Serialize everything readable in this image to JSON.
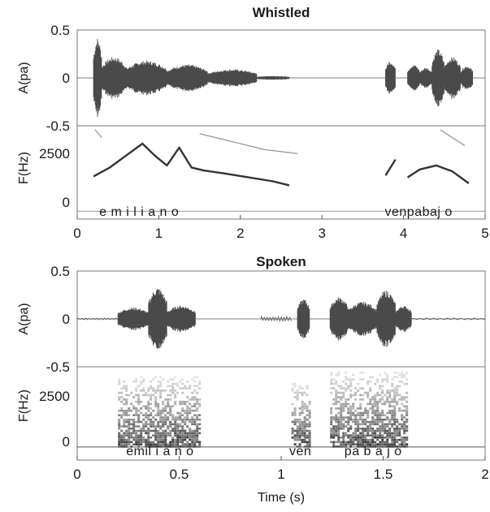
{
  "chart_data": [
    {
      "type": "line",
      "title": "Whistled",
      "x_ticks": [
        "0",
        "1",
        "2",
        "3",
        "4",
        "5"
      ],
      "xlim": [
        0,
        5
      ],
      "waveform": {
        "ylabel": "A(pa)",
        "ylim": [
          -0.5,
          0.5
        ],
        "y_ticks": [
          "0.5",
          "0",
          "-0.5"
        ],
        "bursts": [
          {
            "t0": 0.2,
            "t1": 0.3,
            "amp": 0.42
          },
          {
            "t0": 0.3,
            "t1": 0.6,
            "amp": 0.22
          },
          {
            "t0": 0.6,
            "t1": 1.1,
            "amp": 0.18
          },
          {
            "t0": 1.1,
            "t1": 1.6,
            "amp": 0.14
          },
          {
            "t0": 1.6,
            "t1": 2.2,
            "amp": 0.09
          },
          {
            "t0": 2.2,
            "t1": 2.6,
            "amp": 0.02
          },
          {
            "t0": 3.78,
            "t1": 3.9,
            "amp": 0.18
          },
          {
            "t0": 4.05,
            "t1": 4.2,
            "amp": 0.14
          },
          {
            "t0": 4.2,
            "t1": 4.35,
            "amp": 0.11
          },
          {
            "t0": 4.35,
            "t1": 4.5,
            "amp": 0.3
          },
          {
            "t0": 4.5,
            "t1": 4.7,
            "amp": 0.22
          },
          {
            "t0": 4.7,
            "t1": 4.85,
            "amp": 0.13
          }
        ]
      },
      "pitch": {
        "ylabel": "F(Hz)",
        "ylim": [
          -400,
          4300
        ],
        "y_ticks": [
          "2500",
          "0"
        ],
        "y_tick_values": [
          2500,
          0
        ],
        "contours": [
          {
            "t": [
              0.2,
              0.4,
              0.6,
              0.8,
              0.95,
              1.1,
              1.25,
              1.4,
              1.55,
              1.8,
              2.1,
              2.4,
              2.6
            ],
            "f": [
              1750,
              2200,
              2800,
              3400,
              2800,
              2300,
              3200,
              2200,
              2050,
              1900,
              1700,
              1500,
              1300
            ]
          },
          {
            "t": [
              1.5,
              1.9,
              2.3,
              2.7
            ],
            "f": [
              3900,
              3500,
              3100,
              2900
            ]
          },
          {
            "t": [
              0.22,
              0.3
            ],
            "f": [
              4100,
              3700
            ]
          },
          {
            "t": [
              3.78,
              3.9
            ],
            "f": [
              1800,
              2600
            ]
          },
          {
            "t": [
              4.05,
              4.2,
              4.4,
              4.6,
              4.8
            ],
            "f": [
              1700,
              2100,
              2300,
              2000,
              1400
            ]
          },
          {
            "t": [
              4.45,
              4.6,
              4.75
            ],
            "f": [
              4100,
              3700,
              3300
            ]
          }
        ]
      },
      "segments": [
        {
          "text": "e m i l i  a n  o",
          "t": 0.27
        },
        {
          "text": "venpabaj o",
          "t": 3.77
        }
      ]
    },
    {
      "type": "line",
      "title": "Spoken",
      "x_ticks": [
        "0",
        "0.5",
        "1",
        "1.5",
        "2"
      ],
      "xlim": [
        0,
        2
      ],
      "xlabel": "Time (s)",
      "waveform": {
        "ylabel": "A(pa)",
        "ylim": [
          -0.5,
          0.5
        ],
        "y_ticks": [
          "0.5",
          "0",
          "-0.5"
        ],
        "bursts": [
          {
            "t0": 0.2,
            "t1": 0.35,
            "amp": 0.12
          },
          {
            "t0": 0.35,
            "t1": 0.44,
            "amp": 0.33
          },
          {
            "t0": 0.44,
            "t1": 0.58,
            "amp": 0.14
          },
          {
            "t0": 1.08,
            "t1": 1.14,
            "amp": 0.21
          },
          {
            "t0": 1.24,
            "t1": 1.33,
            "amp": 0.23
          },
          {
            "t0": 1.33,
            "t1": 1.47,
            "amp": 0.18
          },
          {
            "t0": 1.47,
            "t1": 1.56,
            "amp": 0.3
          },
          {
            "t0": 1.56,
            "t1": 1.64,
            "amp": 0.14
          }
        ],
        "wiggles": [
          {
            "t0": 0.0,
            "t1": 0.2,
            "amp": 0.01
          },
          {
            "t0": 0.9,
            "t1": 1.05,
            "amp": 0.03
          },
          {
            "t0": 1.64,
            "t1": 2.0,
            "amp": 0.01
          }
        ]
      },
      "spectrogram": {
        "ylabel": "F(Hz)",
        "ylim": [
          -700,
          4300
        ],
        "y_ticks": [
          "2500",
          "0"
        ],
        "y_tick_values": [
          2500,
          0
        ],
        "regions": [
          {
            "t0": 0.2,
            "t1": 0.6,
            "fmax": 3800
          },
          {
            "t0": 1.05,
            "t1": 1.14,
            "fmax": 3400
          },
          {
            "t0": 1.24,
            "t1": 1.62,
            "fmax": 4000
          }
        ]
      },
      "segments": [
        {
          "text": "emil  i a n o",
          "t": 0.24
        },
        {
          "text": "ven",
          "t": 1.04
        },
        {
          "text": "pa b a j o",
          "t": 1.31
        }
      ]
    }
  ]
}
